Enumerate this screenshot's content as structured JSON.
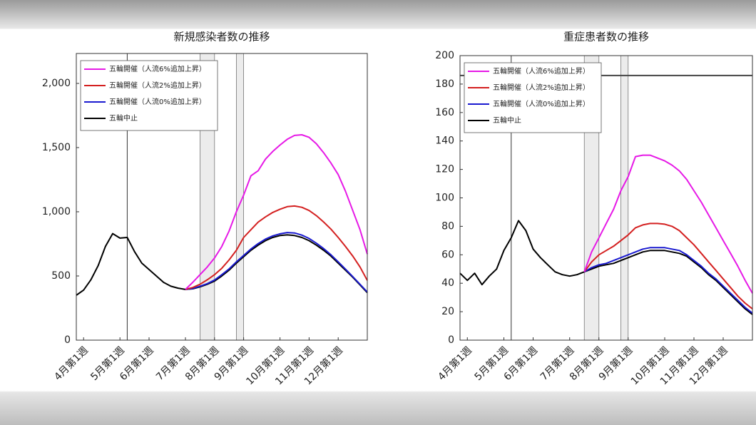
{
  "chart_data": [
    {
      "type": "line",
      "title": "新規感染者数の推移",
      "categories": [
        null,
        "4月第1週",
        null,
        null,
        null,
        null,
        "5月第1週",
        null,
        null,
        null,
        "6月第1週",
        null,
        null,
        null,
        null,
        "7月第1週",
        null,
        null,
        null,
        "8月第1週",
        null,
        null,
        null,
        "9月第1週",
        null,
        null,
        null,
        null,
        "10月第1週",
        null,
        null,
        null,
        "11月第1週",
        null,
        null,
        null,
        "12月第1週",
        null,
        null,
        null,
        null
      ],
      "ylim": [
        0,
        2233
      ],
      "yticks": [
        0,
        500,
        {
          "value": 1000,
          "label": "1,000"
        },
        {
          "value": 1500,
          "label": "1,500"
        },
        {
          "value": 2000,
          "label": "2,000"
        }
      ],
      "legend": "upper left",
      "series": [
        {
          "name": "五輪開催（人流6%追加上昇）",
          "color": "#e619e6",
          "values": [
            null,
            null,
            null,
            null,
            null,
            null,
            null,
            null,
            null,
            null,
            null,
            null,
            null,
            null,
            null,
            395,
            450,
            510,
            570,
            640,
            730,
            850,
            1000,
            1130,
            1280,
            1320,
            1410,
            1470,
            1520,
            1565,
            1595,
            1600,
            1580,
            1530,
            1460,
            1380,
            1290,
            1160,
            1010,
            860,
            670
          ]
        },
        {
          "name": "五輪開催（人流2%追加上昇）",
          "color": "#d42020",
          "values": [
            null,
            null,
            null,
            null,
            null,
            null,
            null,
            null,
            null,
            null,
            null,
            null,
            null,
            null,
            null,
            395,
            410,
            435,
            470,
            510,
            560,
            625,
            700,
            800,
            860,
            920,
            960,
            995,
            1020,
            1040,
            1045,
            1035,
            1010,
            970,
            920,
            865,
            800,
            730,
            655,
            570,
            465
          ]
        },
        {
          "name": "五輪開催（人流0%追加上昇）",
          "color": "#1a1ad0",
          "values": [
            null,
            null,
            null,
            null,
            null,
            null,
            null,
            null,
            null,
            null,
            null,
            null,
            null,
            null,
            null,
            395,
            402,
            420,
            440,
            468,
            510,
            555,
            610,
            660,
            710,
            752,
            787,
            812,
            828,
            838,
            835,
            818,
            792,
            755,
            713,
            665,
            610,
            553,
            495,
            435,
            375
          ]
        },
        {
          "name": "五輪中止",
          "color": "#000000",
          "values": [
            350,
            390,
            470,
            580,
            730,
            830,
            795,
            800,
            690,
            600,
            550,
            500,
            450,
            420,
            405,
            395,
            400,
            415,
            435,
            460,
            500,
            545,
            600,
            650,
            700,
            740,
            775,
            800,
            815,
            820,
            815,
            800,
            775,
            740,
            700,
            655,
            600,
            545,
            490,
            430,
            370
          ]
        }
      ]
    },
    {
      "type": "line",
      "title": "重症患者数の推移",
      "categories": [
        null,
        "4月第1週",
        null,
        null,
        null,
        null,
        "5月第1週",
        null,
        null,
        null,
        "6月第1週",
        null,
        null,
        null,
        null,
        "7月第1週",
        null,
        null,
        null,
        "8月第1週",
        null,
        null,
        null,
        "9月第1週",
        null,
        null,
        null,
        null,
        "10月第1週",
        null,
        null,
        null,
        "11月第1週",
        null,
        null,
        null,
        "12月第1週",
        null,
        null,
        null,
        null
      ],
      "ylim": [
        0,
        200
      ],
      "yticks": [
        0,
        20,
        40,
        60,
        80,
        100,
        120,
        140,
        160,
        180,
        200
      ],
      "reference_line": 186,
      "legend": "upper left",
      "series": [
        {
          "name": "五輪開催（人流6%追加上昇）",
          "color": "#e619e6",
          "values": [
            null,
            null,
            null,
            null,
            null,
            null,
            null,
            null,
            null,
            null,
            null,
            null,
            null,
            null,
            null,
            null,
            null,
            48,
            62,
            72,
            82,
            92,
            105,
            115,
            129,
            130,
            130,
            128,
            126,
            123,
            119,
            113,
            105,
            97,
            88,
            79,
            70,
            61,
            52,
            42,
            33
          ]
        },
        {
          "name": "五輪開催（人流2%追加上昇）",
          "color": "#d42020",
          "values": [
            null,
            null,
            null,
            null,
            null,
            null,
            null,
            null,
            null,
            null,
            null,
            null,
            null,
            null,
            null,
            null,
            null,
            48,
            55,
            60,
            63,
            66,
            70,
            74,
            79,
            81,
            82,
            82,
            81.5,
            80,
            77,
            72,
            67,
            61,
            55,
            49,
            43,
            37,
            31,
            26,
            22
          ]
        },
        {
          "name": "五輪開催（人流0%追加上昇）",
          "color": "#1a1ad0",
          "values": [
            null,
            null,
            null,
            null,
            null,
            null,
            null,
            null,
            null,
            null,
            null,
            null,
            null,
            null,
            null,
            null,
            null,
            48,
            51,
            53,
            54,
            56,
            58,
            60,
            62,
            64,
            65,
            65,
            65,
            64,
            63,
            60,
            56,
            52,
            47,
            43,
            38,
            33,
            28,
            23,
            19
          ]
        },
        {
          "name": "五輪中止",
          "color": "#000000",
          "values": [
            47,
            42,
            47,
            39,
            45,
            50,
            63,
            72,
            84,
            77,
            64,
            58,
            53,
            48,
            46,
            45,
            46,
            48,
            50,
            52,
            53,
            54,
            56,
            58,
            60,
            62,
            63,
            63,
            63,
            62,
            61,
            59,
            55,
            51,
            46,
            42,
            37,
            32,
            27,
            22,
            18
          ]
        }
      ]
    }
  ]
}
